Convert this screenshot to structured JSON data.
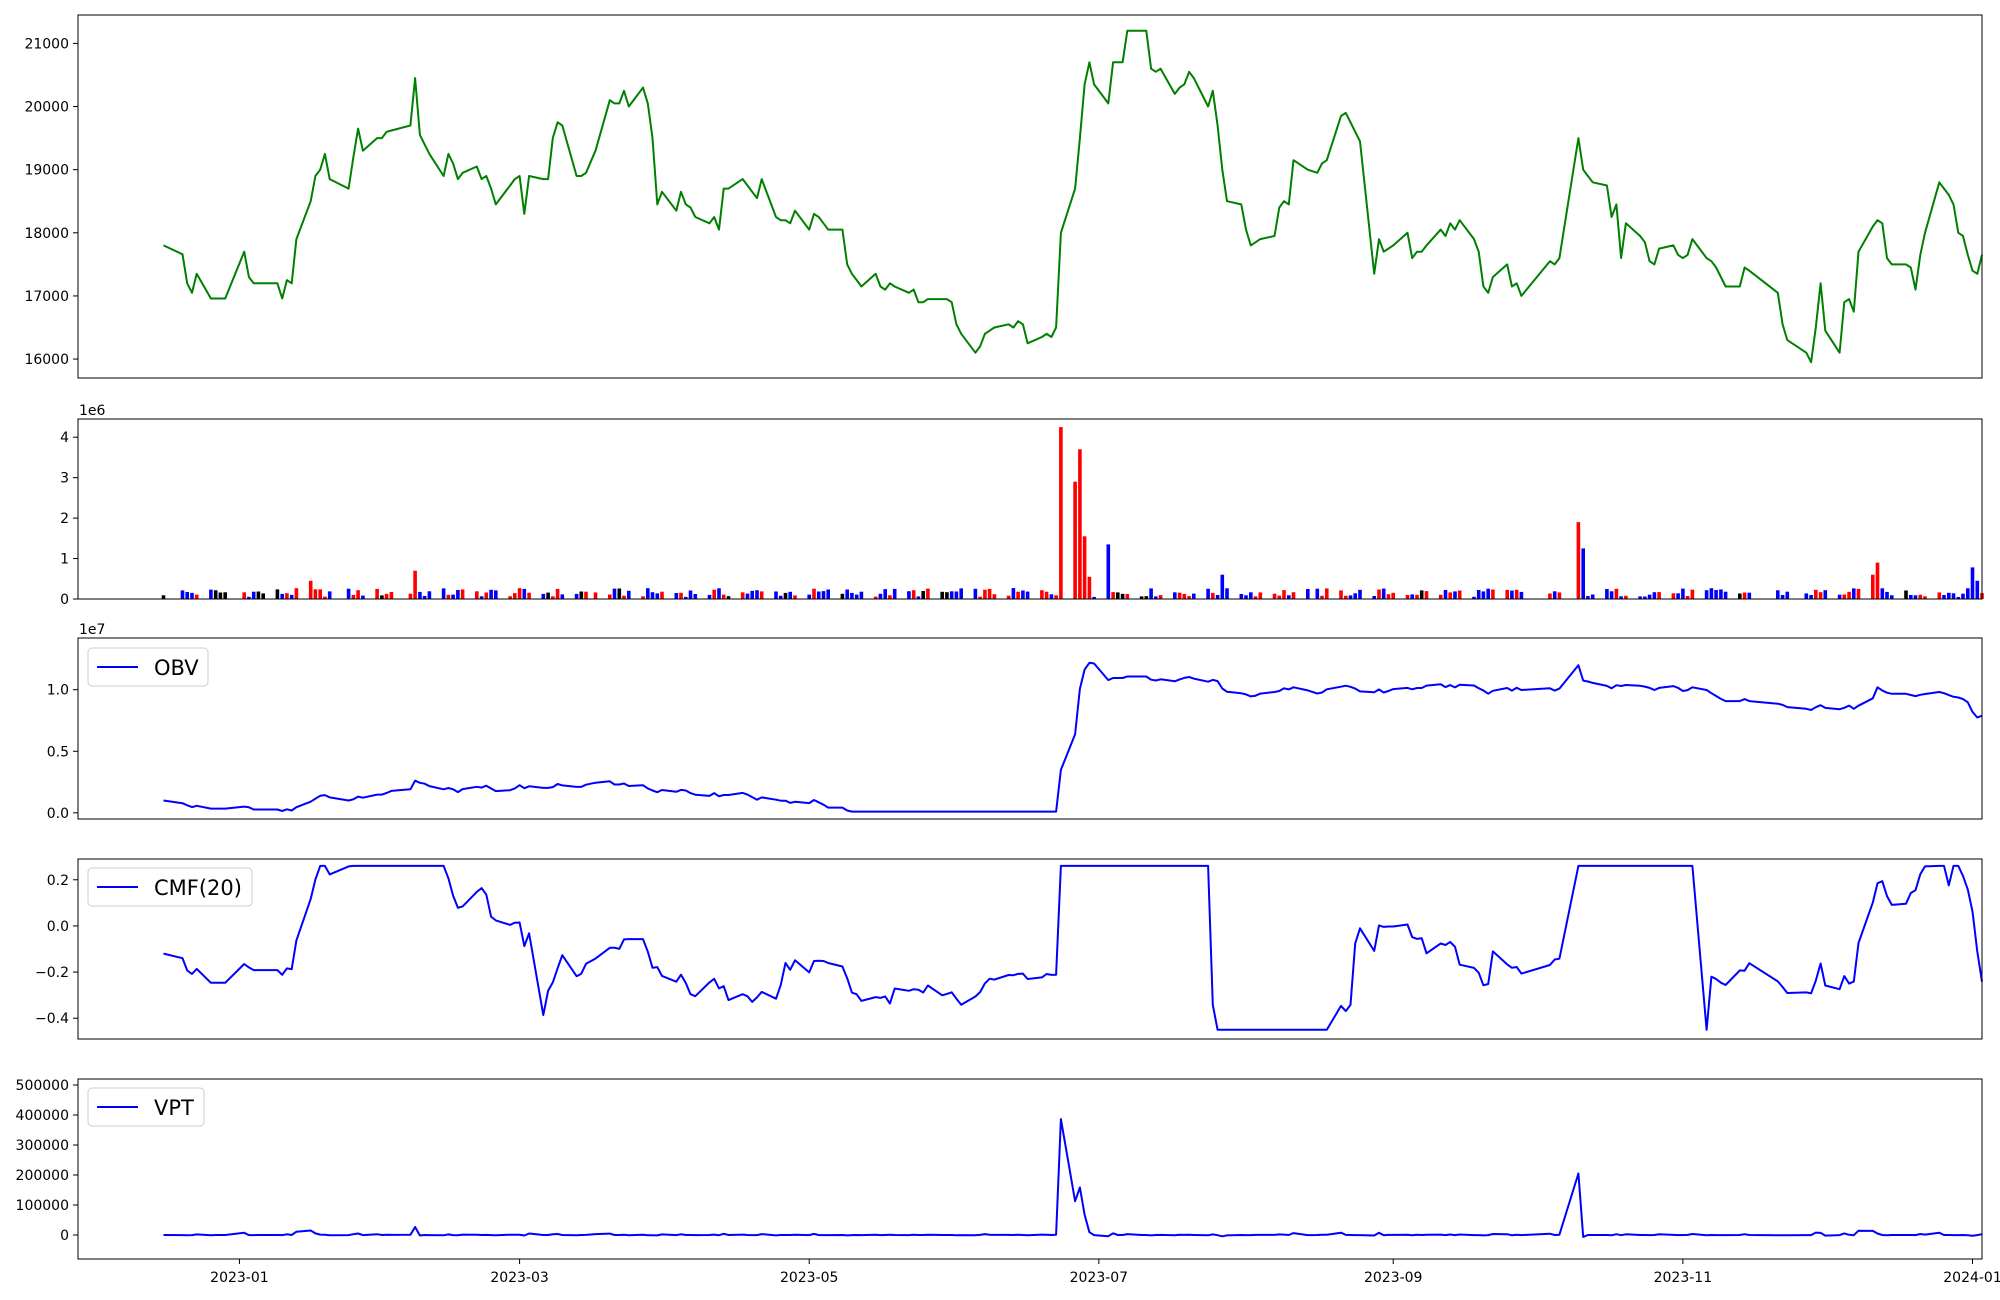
{
  "x_axis": {
    "ticks": [
      "2023-01",
      "2023-03",
      "2023-05",
      "2023-07",
      "2023-09",
      "2023-11",
      "2024-01"
    ],
    "range": [
      "2022-11-28",
      "2024-01-03"
    ]
  },
  "colors": {
    "price": "#008000",
    "indicator": "#0000ff",
    "vol_up": "#ff0000",
    "vol_down": "#0000ff",
    "vol_flat": "#000000"
  },
  "chart_data": [
    {
      "type": "line",
      "series": [
        {
          "name": "",
          "color": "#008000"
        }
      ],
      "ylim": [
        15700,
        21450
      ],
      "yticks": [
        16000,
        17000,
        18000,
        19000,
        20000,
        21000
      ],
      "ytick_labels": [
        "16000",
        "17000",
        "18000",
        "19000",
        "20000",
        "21000"
      ],
      "points": [
        [
          "2022-12-16",
          17800
        ],
        [
          "2022-12-20",
          17660
        ],
        [
          "2022-12-21",
          17200
        ],
        [
          "2022-12-22",
          17050
        ],
        [
          "2022-12-23",
          17350
        ],
        [
          "2022-12-26",
          16960
        ],
        [
          "2022-12-27",
          16960
        ],
        [
          "2022-12-28",
          16960
        ],
        [
          "2022-12-29",
          16960
        ],
        [
          "2023-01-02",
          17700
        ],
        [
          "2023-01-03",
          17300
        ],
        [
          "2023-01-04",
          17200
        ],
        [
          "2023-01-05",
          17200
        ],
        [
          "2023-01-06",
          17200
        ],
        [
          "2023-01-09",
          17200
        ],
        [
          "2023-01-10",
          16960
        ],
        [
          "2023-01-11",
          17250
        ],
        [
          "2023-01-12",
          17200
        ],
        [
          "2023-01-13",
          17900
        ],
        [
          "2023-01-16",
          18500
        ],
        [
          "2023-01-17",
          18900
        ],
        [
          "2023-01-18",
          19000
        ],
        [
          "2023-01-19",
          19250
        ],
        [
          "2023-01-20",
          18850
        ],
        [
          "2023-01-24",
          18700
        ],
        [
          "2023-01-25",
          19200
        ],
        [
          "2023-01-26",
          19650
        ],
        [
          "2023-01-27",
          19300
        ],
        [
          "2023-01-30",
          19500
        ],
        [
          "2023-01-31",
          19500
        ],
        [
          "2023-02-01",
          19600
        ],
        [
          "2023-02-02",
          19620
        ],
        [
          "2023-02-06",
          19700
        ],
        [
          "2023-02-07",
          20450
        ],
        [
          "2023-02-08",
          19550
        ],
        [
          "2023-02-09",
          19400
        ],
        [
          "2023-02-10",
          19250
        ],
        [
          "2023-02-13",
          18900
        ],
        [
          "2023-02-14",
          19250
        ],
        [
          "2023-02-15",
          19100
        ],
        [
          "2023-02-16",
          18850
        ],
        [
          "2023-02-17",
          18950
        ],
        [
          "2023-02-20",
          19050
        ],
        [
          "2023-02-21",
          18850
        ],
        [
          "2023-02-22",
          18900
        ],
        [
          "2023-02-23",
          18700
        ],
        [
          "2023-02-24",
          18450
        ],
        [
          "2023-02-27",
          18750
        ],
        [
          "2023-02-28",
          18850
        ],
        [
          "2023-03-01",
          18900
        ],
        [
          "2023-03-02",
          18300
        ],
        [
          "2023-03-03",
          18900
        ],
        [
          "2023-03-06",
          18850
        ],
        [
          "2023-03-07",
          18850
        ],
        [
          "2023-03-08",
          19500
        ],
        [
          "2023-03-09",
          19750
        ],
        [
          "2023-03-10",
          19700
        ],
        [
          "2023-03-13",
          18900
        ],
        [
          "2023-03-14",
          18900
        ],
        [
          "2023-03-15",
          18950
        ],
        [
          "2023-03-17",
          19300
        ],
        [
          "2023-03-20",
          20100
        ],
        [
          "2023-03-21",
          20050
        ],
        [
          "2023-03-22",
          20050
        ],
        [
          "2023-03-23",
          20250
        ],
        [
          "2023-03-24",
          20000
        ],
        [
          "2023-03-27",
          20300
        ],
        [
          "2023-03-28",
          20050
        ],
        [
          "2023-03-29",
          19500
        ],
        [
          "2023-03-30",
          18450
        ],
        [
          "2023-03-31",
          18650
        ],
        [
          "2023-04-03",
          18350
        ],
        [
          "2023-04-04",
          18650
        ],
        [
          "2023-04-05",
          18450
        ],
        [
          "2023-04-06",
          18400
        ],
        [
          "2023-04-07",
          18250
        ],
        [
          "2023-04-10",
          18150
        ],
        [
          "2023-04-11",
          18250
        ],
        [
          "2023-04-12",
          18050
        ],
        [
          "2023-04-13",
          18700
        ],
        [
          "2023-04-14",
          18700
        ],
        [
          "2023-04-17",
          18850
        ],
        [
          "2023-04-18",
          18750
        ],
        [
          "2023-04-19",
          18650
        ],
        [
          "2023-04-20",
          18550
        ],
        [
          "2023-04-21",
          18850
        ],
        [
          "2023-04-24",
          18250
        ],
        [
          "2023-04-25",
          18200
        ],
        [
          "2023-04-26",
          18200
        ],
        [
          "2023-04-27",
          18150
        ],
        [
          "2023-04-28",
          18350
        ],
        [
          "2023-05-01",
          18050
        ],
        [
          "2023-05-02",
          18300
        ],
        [
          "2023-05-03",
          18250
        ],
        [
          "2023-05-04",
          18150
        ],
        [
          "2023-05-05",
          18050
        ],
        [
          "2023-05-08",
          18050
        ],
        [
          "2023-05-09",
          17500
        ],
        [
          "2023-05-10",
          17350
        ],
        [
          "2023-05-11",
          17250
        ],
        [
          "2023-05-12",
          17150
        ],
        [
          "2023-05-15",
          17350
        ],
        [
          "2023-05-16",
          17150
        ],
        [
          "2023-05-17",
          17100
        ],
        [
          "2023-05-18",
          17200
        ],
        [
          "2023-05-19",
          17150
        ],
        [
          "2023-05-22",
          17050
        ],
        [
          "2023-05-23",
          17100
        ],
        [
          "2023-05-24",
          16900
        ],
        [
          "2023-05-25",
          16900
        ],
        [
          "2023-05-26",
          16950
        ],
        [
          "2023-05-29",
          16950
        ],
        [
          "2023-05-30",
          16950
        ],
        [
          "2023-05-31",
          16900
        ],
        [
          "2023-06-01",
          16550
        ],
        [
          "2023-06-02",
          16400
        ],
        [
          "2023-06-05",
          16100
        ],
        [
          "2023-06-06",
          16200
        ],
        [
          "2023-06-07",
          16400
        ],
        [
          "2023-06-08",
          16450
        ],
        [
          "2023-06-09",
          16500
        ],
        [
          "2023-06-12",
          16550
        ],
        [
          "2023-06-13",
          16500
        ],
        [
          "2023-06-14",
          16600
        ],
        [
          "2023-06-15",
          16550
        ],
        [
          "2023-06-16",
          16250
        ],
        [
          "2023-06-19",
          16350
        ],
        [
          "2023-06-20",
          16400
        ],
        [
          "2023-06-21",
          16350
        ],
        [
          "2023-06-22",
          16500
        ],
        [
          "2023-06-23",
          18000
        ],
        [
          "2023-06-26",
          18700
        ],
        [
          "2023-06-27",
          19500
        ],
        [
          "2023-06-28",
          20350
        ],
        [
          "2023-06-29",
          20700
        ],
        [
          "2023-06-30",
          20350
        ],
        [
          "2023-07-03",
          20050
        ],
        [
          "2023-07-04",
          20700
        ],
        [
          "2023-07-05",
          20700
        ],
        [
          "2023-07-06",
          20700
        ],
        [
          "2023-07-07",
          21200
        ],
        [
          "2023-07-10",
          21200
        ],
        [
          "2023-07-11",
          21200
        ],
        [
          "2023-07-12",
          20600
        ],
        [
          "2023-07-13",
          20550
        ],
        [
          "2023-07-14",
          20600
        ],
        [
          "2023-07-17",
          20200
        ],
        [
          "2023-07-18",
          20300
        ],
        [
          "2023-07-19",
          20350
        ],
        [
          "2023-07-20",
          20550
        ],
        [
          "2023-07-21",
          20450
        ],
        [
          "2023-07-24",
          20000
        ],
        [
          "2023-07-25",
          20250
        ],
        [
          "2023-07-26",
          19700
        ],
        [
          "2023-07-27",
          19000
        ],
        [
          "2023-07-28",
          18500
        ],
        [
          "2023-07-31",
          18450
        ],
        [
          "2023-08-01",
          18050
        ],
        [
          "2023-08-02",
          17800
        ],
        [
          "2023-08-03",
          17850
        ],
        [
          "2023-08-04",
          17900
        ],
        [
          "2023-08-07",
          17950
        ],
        [
          "2023-08-08",
          18400
        ],
        [
          "2023-08-09",
          18500
        ],
        [
          "2023-08-10",
          18450
        ],
        [
          "2023-08-11",
          19150
        ],
        [
          "2023-08-14",
          19000
        ],
        [
          "2023-08-16",
          18950
        ],
        [
          "2023-08-17",
          19100
        ],
        [
          "2023-08-18",
          19150
        ],
        [
          "2023-08-21",
          19850
        ],
        [
          "2023-08-22",
          19900
        ],
        [
          "2023-08-23",
          19750
        ],
        [
          "2023-08-24",
          19600
        ],
        [
          "2023-08-25",
          19450
        ],
        [
          "2023-08-28",
          17350
        ],
        [
          "2023-08-29",
          17900
        ],
        [
          "2023-08-30",
          17700
        ],
        [
          "2023-08-31",
          17750
        ],
        [
          "2023-09-01",
          17800
        ],
        [
          "2023-09-04",
          18000
        ],
        [
          "2023-09-05",
          17600
        ],
        [
          "2023-09-06",
          17700
        ],
        [
          "2023-09-07",
          17700
        ],
        [
          "2023-09-08",
          17800
        ],
        [
          "2023-09-11",
          18050
        ],
        [
          "2023-09-12",
          17950
        ],
        [
          "2023-09-13",
          18150
        ],
        [
          "2023-09-14",
          18050
        ],
        [
          "2023-09-15",
          18200
        ],
        [
          "2023-09-18",
          17900
        ],
        [
          "2023-09-19",
          17700
        ],
        [
          "2023-09-20",
          17150
        ],
        [
          "2023-09-21",
          17050
        ],
        [
          "2023-09-22",
          17300
        ],
        [
          "2023-09-25",
          17500
        ],
        [
          "2023-09-26",
          17150
        ],
        [
          "2023-09-27",
          17200
        ],
        [
          "2023-09-28",
          17000
        ],
        [
          "2023-10-04",
          17550
        ],
        [
          "2023-10-05",
          17500
        ],
        [
          "2023-10-06",
          17600
        ],
        [
          "2023-10-10",
          19500
        ],
        [
          "2023-10-11",
          19000
        ],
        [
          "2023-10-12",
          18900
        ],
        [
          "2023-10-13",
          18800
        ],
        [
          "2023-10-16",
          18750
        ],
        [
          "2023-10-17",
          18250
        ],
        [
          "2023-10-18",
          18450
        ],
        [
          "2023-10-19",
          17600
        ],
        [
          "2023-10-20",
          18150
        ],
        [
          "2023-10-23",
          17950
        ],
        [
          "2023-10-24",
          17850
        ],
        [
          "2023-10-25",
          17550
        ],
        [
          "2023-10-26",
          17500
        ],
        [
          "2023-10-27",
          17750
        ],
        [
          "2023-10-30",
          17800
        ],
        [
          "2023-10-31",
          17650
        ],
        [
          "2023-11-01",
          17600
        ],
        [
          "2023-11-02",
          17650
        ],
        [
          "2023-11-03",
          17900
        ],
        [
          "2023-11-06",
          17600
        ],
        [
          "2023-11-07",
          17550
        ],
        [
          "2023-11-08",
          17450
        ],
        [
          "2023-11-09",
          17300
        ],
        [
          "2023-11-10",
          17150
        ],
        [
          "2023-11-13",
          17150
        ],
        [
          "2023-11-14",
          17450
        ],
        [
          "2023-11-15",
          17400
        ],
        [
          "2023-11-21",
          17050
        ],
        [
          "2023-11-22",
          16550
        ],
        [
          "2023-11-23",
          16300
        ],
        [
          "2023-11-27",
          16100
        ],
        [
          "2023-11-28",
          15950
        ],
        [
          "2023-11-29",
          16500
        ],
        [
          "2023-11-30",
          17200
        ],
        [
          "2023-12-01",
          16450
        ],
        [
          "2023-12-04",
          16100
        ],
        [
          "2023-12-05",
          16900
        ],
        [
          "2023-12-06",
          16950
        ],
        [
          "2023-12-07",
          16750
        ],
        [
          "2023-12-08",
          17700
        ],
        [
          "2023-12-11",
          18100
        ],
        [
          "2023-12-12",
          18200
        ],
        [
          "2023-12-13",
          18150
        ],
        [
          "2023-12-14",
          17600
        ],
        [
          "2023-12-15",
          17500
        ],
        [
          "2023-12-18",
          17500
        ],
        [
          "2023-12-19",
          17450
        ],
        [
          "2023-12-20",
          17100
        ],
        [
          "2023-12-21",
          17650
        ],
        [
          "2023-12-22",
          18000
        ],
        [
          "2023-12-25",
          18800
        ],
        [
          "2023-12-26",
          18700
        ],
        [
          "2023-12-27",
          18600
        ],
        [
          "2023-12-28",
          18450
        ],
        [
          "2023-12-29",
          18000
        ],
        [
          "2023-12-30",
          17950
        ],
        [
          "2023-12-31",
          17650
        ],
        [
          "2024-01-01",
          17400
        ],
        [
          "2024-01-02",
          17350
        ],
        [
          "2024-01-03",
          17650
        ]
      ],
      "note_points_scaled": true
    },
    {
      "type": "bar",
      "exponent_label": "1e6",
      "ylim": [
        0,
        4.45
      ],
      "yticks": [
        0,
        1,
        2,
        3,
        4
      ],
      "ytick_labels": [
        "0",
        "1",
        "2",
        "3",
        "4"
      ],
      "legend": []
    },
    {
      "type": "line",
      "exponent_label": "1e7",
      "ylim": [
        -0.05,
        1.42
      ],
      "yticks": [
        0,
        0.5,
        1.0
      ],
      "ytick_labels": [
        "0.0",
        "0.5",
        "1.0"
      ],
      "series": [
        {
          "name": "OBV",
          "color": "#0000ff"
        }
      ],
      "legend": "upper-left"
    },
    {
      "type": "line",
      "ylim": [
        -0.49,
        0.29
      ],
      "yticks": [
        -0.4,
        -0.2,
        0.0,
        0.2
      ],
      "ytick_labels": [
        "−0.4",
        "−0.2",
        "0.0",
        "0.2"
      ],
      "series": [
        {
          "name": "CMF(20)",
          "color": "#0000ff"
        }
      ],
      "legend": "upper-left"
    },
    {
      "type": "line",
      "ylim": [
        -80000,
        520000
      ],
      "yticks": [
        0,
        100000,
        200000,
        300000,
        400000,
        500000
      ],
      "ytick_labels": [
        "0",
        "100000",
        "200000",
        "300000",
        "400000",
        "500000"
      ],
      "series": [
        {
          "name": "VPT",
          "color": "#0000ff"
        }
      ],
      "legend": "upper-left"
    }
  ]
}
